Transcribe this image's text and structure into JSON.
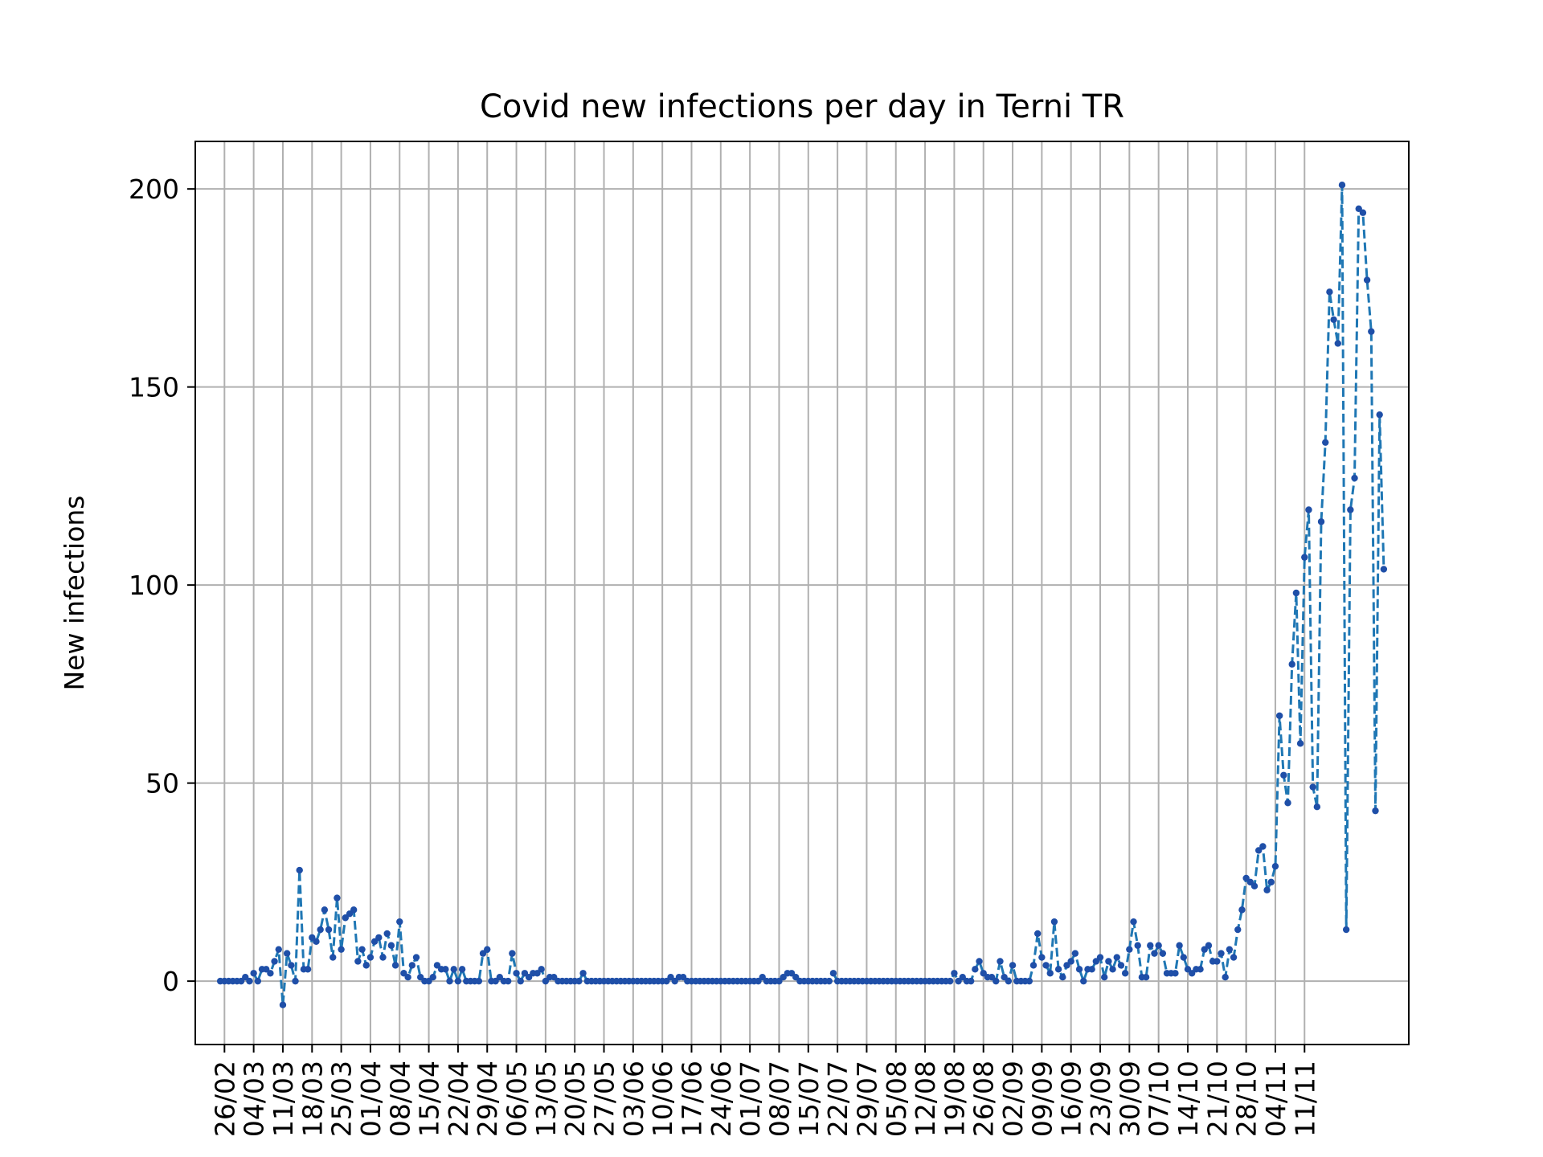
{
  "chart_data": {
    "type": "line",
    "title": "Covid new infections per day in Terni TR",
    "xlabel": "",
    "ylabel": "New infections",
    "ylim": [
      -16,
      212
    ],
    "yticks": [
      0,
      50,
      100,
      150,
      200
    ],
    "grid": true,
    "line_color": "#1f77b4",
    "marker_color": "#1f4fa8",
    "x_tick_labels": [
      "26/02",
      "04/03",
      "11/03",
      "18/03",
      "25/03",
      "01/04",
      "08/04",
      "15/04",
      "22/04",
      "29/04",
      "06/05",
      "13/05",
      "20/05",
      "27/05",
      "03/06",
      "10/06",
      "17/06",
      "24/06",
      "01/07",
      "08/07",
      "15/07",
      "22/07",
      "29/07",
      "05/08",
      "12/08",
      "19/08",
      "26/08",
      "02/09",
      "09/09",
      "16/09",
      "23/09",
      "30/09",
      "07/10",
      "14/10",
      "21/10",
      "28/10",
      "04/11",
      "11/11"
    ],
    "start_date": "2020-02-25",
    "series": [
      {
        "values": [
          0,
          0,
          0,
          0,
          0,
          0,
          1,
          0,
          2,
          0,
          3,
          3,
          2,
          5,
          8,
          -6,
          7,
          4,
          0,
          28,
          3,
          3,
          11,
          10,
          13,
          18,
          13,
          6,
          21,
          8,
          16,
          17,
          18,
          5,
          8,
          4,
          6,
          10,
          11,
          6,
          12,
          9,
          4,
          15,
          2,
          1,
          4,
          6,
          1,
          0,
          0,
          1,
          4,
          3,
          3,
          0,
          3,
          0,
          3,
          0,
          0,
          0,
          0,
          7,
          8,
          0,
          0,
          1,
          0,
          0,
          7,
          2,
          0,
          2,
          1,
          2,
          2,
          3,
          0,
          1,
          1,
          0,
          0,
          0,
          0,
          0,
          0,
          2,
          0,
          0,
          0,
          0,
          0,
          0,
          0,
          0,
          0,
          0,
          0,
          0,
          0,
          0,
          0,
          0,
          0,
          0,
          0,
          0,
          1,
          0,
          1,
          1,
          0,
          0,
          0,
          0,
          0,
          0,
          0,
          0,
          0,
          0,
          0,
          0,
          0,
          0,
          0,
          0,
          0,
          0,
          1,
          0,
          0,
          0,
          0,
          1,
          2,
          2,
          1,
          0,
          0,
          0,
          0,
          0,
          0,
          0,
          0,
          2,
          0,
          0,
          0,
          0,
          0,
          0,
          0,
          0,
          0,
          0,
          0,
          0,
          0,
          0,
          0,
          0,
          0,
          0,
          0,
          0,
          0,
          0,
          0,
          0,
          0,
          0,
          0,
          0,
          2,
          0,
          1,
          0,
          0,
          3,
          5,
          2,
          1,
          1,
          0,
          5,
          1,
          0,
          4,
          0,
          0,
          0,
          0,
          4,
          12,
          6,
          4,
          2,
          15,
          3,
          1,
          4,
          5,
          7,
          3,
          0,
          3,
          3,
          5,
          6,
          1,
          5,
          3,
          6,
          4,
          2,
          8,
          15,
          9,
          1,
          1,
          9,
          7,
          9,
          7,
          2,
          2,
          2,
          9,
          6,
          3,
          2,
          3,
          3,
          8,
          9,
          5,
          5,
          7,
          1,
          8,
          6,
          13,
          18,
          26,
          25,
          24,
          33,
          34,
          23,
          25,
          29,
          67,
          52,
          45,
          80,
          98,
          60,
          107,
          119,
          49,
          44,
          116,
          136,
          174,
          167,
          161,
          201,
          13,
          119,
          127,
          195,
          194,
          177,
          164,
          43,
          143,
          104
        ]
      }
    ]
  }
}
